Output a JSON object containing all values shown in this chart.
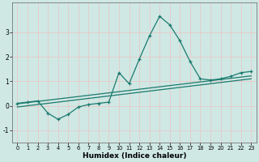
{
  "xlabel": "Humidex (Indice chaleur)",
  "bg_color": "#cfe8e4",
  "grid_color": "#e8c8c8",
  "line_color": "#1a7a6e",
  "xlim": [
    -0.5,
    23.5
  ],
  "ylim": [
    -1.5,
    4.2
  ],
  "yticks": [
    -1,
    0,
    1,
    2,
    3
  ],
  "xticks": [
    0,
    1,
    2,
    3,
    4,
    5,
    6,
    7,
    8,
    9,
    10,
    11,
    12,
    13,
    14,
    15,
    16,
    17,
    18,
    19,
    20,
    21,
    22,
    23
  ],
  "series1_x": [
    0,
    1,
    2,
    3,
    4,
    5,
    6,
    7,
    8,
    9,
    10,
    11,
    12,
    13,
    14,
    15,
    16,
    17,
    18,
    19,
    20,
    21,
    22,
    23
  ],
  "series1_y": [
    0.1,
    0.15,
    0.2,
    -0.3,
    -0.55,
    -0.35,
    -0.05,
    0.05,
    0.1,
    0.15,
    1.35,
    0.9,
    1.9,
    2.85,
    3.65,
    3.3,
    2.65,
    1.8,
    1.1,
    1.05,
    1.1,
    1.2,
    1.35,
    1.4
  ],
  "series2_x": [
    0,
    23
  ],
  "series2_y": [
    0.08,
    1.22
  ],
  "series3_x": [
    0,
    23
  ],
  "series3_y": [
    -0.05,
    1.1
  ]
}
